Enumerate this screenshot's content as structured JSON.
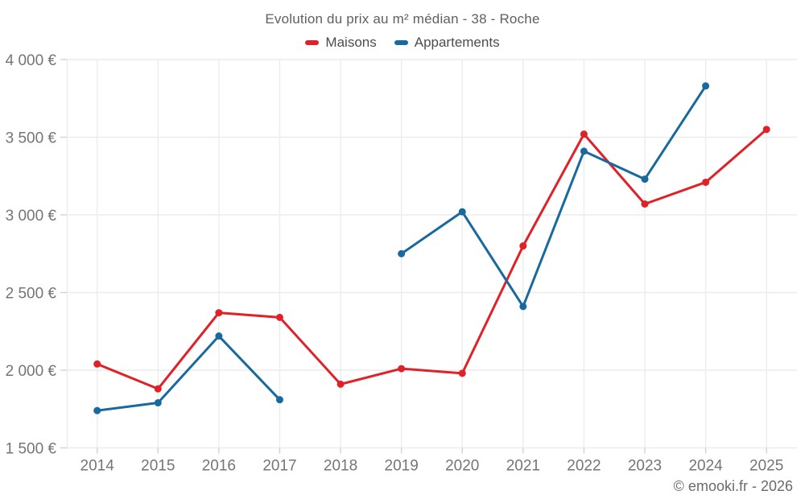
{
  "page": {
    "footer": "© emooki.fr - 2026"
  },
  "chart_data": {
    "type": "line",
    "title": "Evolution du prix au m² médian - 38 - Roche",
    "x": [
      "2014",
      "2015",
      "2016",
      "2017",
      "2018",
      "2019",
      "2020",
      "2021",
      "2022",
      "2023",
      "2024",
      "2025"
    ],
    "series": [
      {
        "name": "Maisons",
        "color": "#e02127",
        "values": [
          2040,
          1880,
          2370,
          2340,
          1910,
          2010,
          1980,
          2800,
          3520,
          3070,
          3210,
          3550
        ]
      },
      {
        "name": "Appartements",
        "color": "#17699e",
        "values": [
          1740,
          1790,
          2220,
          1810,
          null,
          2750,
          3020,
          2410,
          3410,
          3230,
          3830,
          null
        ]
      }
    ],
    "xlabel": "",
    "ylabel": "",
    "ylim": [
      1500,
      4000
    ],
    "ytick_step": 500,
    "ytick_labels": [
      "1 500 €",
      "2 000 €",
      "2 500 €",
      "3 000 €",
      "3 500 €",
      "4 000 €"
    ],
    "currency": "€",
    "grid": true,
    "legend_position": "top"
  }
}
